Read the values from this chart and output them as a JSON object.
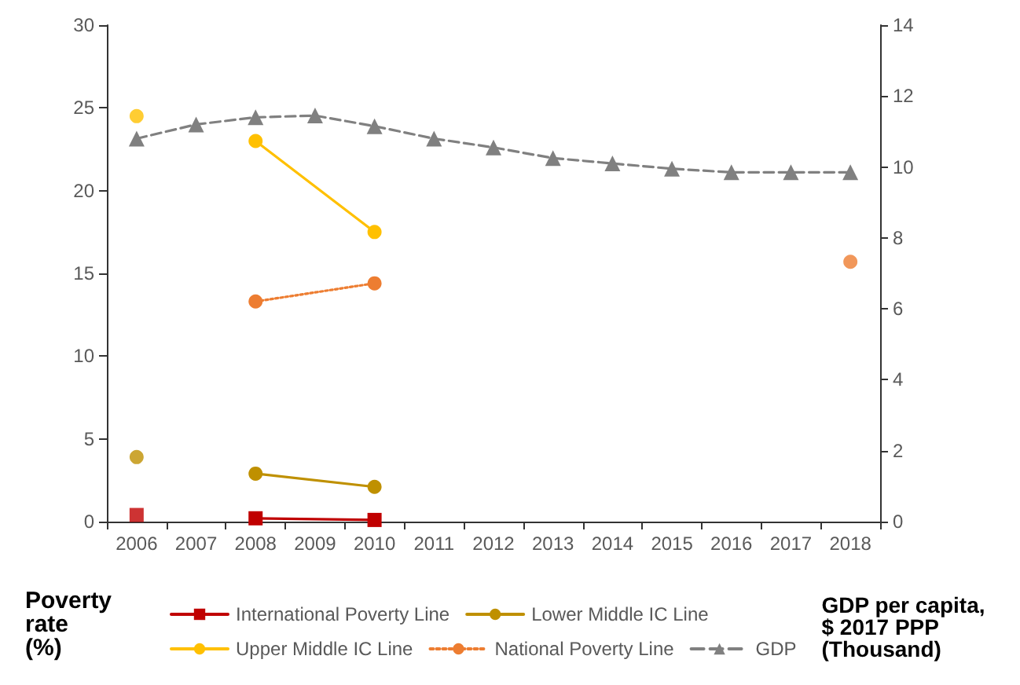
{
  "chart_data": {
    "type": "line",
    "ylabel": "Poverty rate (%)",
    "y2label": "GDP per capita, $ 2017 PPP (Thousand)",
    "categories": [
      "2006",
      "2007",
      "2008",
      "2009",
      "2010",
      "2011",
      "2012",
      "2013",
      "2014",
      "2015",
      "2016",
      "2017",
      "2018"
    ],
    "series": [
      {
        "name": "International Poverty Line",
        "color": "#c00000",
        "marker": "square",
        "line_style": "solid",
        "values": [
          null,
          null,
          0.2,
          null,
          0.1,
          null,
          null,
          null,
          null,
          null,
          null,
          null,
          null
        ]
      },
      {
        "name": "Lower Middle IC Line",
        "color": "#bf9000",
        "marker": "circle",
        "line_style": "solid",
        "values": [
          null,
          null,
          2.9,
          null,
          2.1,
          null,
          null,
          null,
          null,
          null,
          null,
          null,
          null
        ]
      },
      {
        "name": "Upper Middle IC Line",
        "color": "#ffc000",
        "marker": "circle",
        "line_style": "solid",
        "values": [
          null,
          null,
          23.0,
          null,
          17.5,
          null,
          null,
          null,
          null,
          null,
          null,
          null,
          null
        ]
      },
      {
        "name": "National Poverty Line",
        "color": "#ed7d31",
        "marker": "circle",
        "line_style": "dotted",
        "values": [
          null,
          null,
          13.3,
          null,
          14.4,
          null,
          null,
          null,
          null,
          null,
          null,
          null,
          null
        ]
      },
      {
        "name": "GDP",
        "color": "#808080",
        "marker": "triangle",
        "line_style": "dashed",
        "axis": "y2",
        "values": [
          10.8,
          11.2,
          11.4,
          11.45,
          11.15,
          10.8,
          10.55,
          10.25,
          10.1,
          9.95,
          9.85,
          9.85,
          9.85
        ]
      },
      {
        "type": "scatter",
        "color": "#c00000",
        "marker": "square",
        "values": [
          0.4,
          null,
          null,
          null,
          null,
          null,
          null,
          null,
          null,
          null,
          null,
          null,
          null
        ]
      },
      {
        "type": "scatter",
        "color": "#bf9000",
        "marker": "circle",
        "values": [
          3.9,
          null,
          null,
          null,
          null,
          null,
          null,
          null,
          null,
          null,
          null,
          null,
          null
        ]
      },
      {
        "type": "scatter",
        "color": "#ffc000",
        "marker": "circle",
        "values": [
          24.5,
          null,
          null,
          null,
          null,
          null,
          null,
          null,
          null,
          null,
          null,
          null,
          null
        ]
      },
      {
        "type": "scatter",
        "color": "#ed7d31",
        "marker": "circle",
        "values": [
          null,
          null,
          null,
          null,
          null,
          null,
          null,
          null,
          null,
          null,
          null,
          null,
          15.7
        ]
      }
    ],
    "ylim": [
      0,
      30
    ],
    "yticks": [
      0,
      5,
      10,
      15,
      20,
      25,
      30
    ],
    "y2lim": [
      0,
      14
    ],
    "y2ticks": [
      0,
      2,
      4,
      6,
      8,
      10,
      12,
      14
    ],
    "grid": false,
    "legend": "bottom"
  }
}
